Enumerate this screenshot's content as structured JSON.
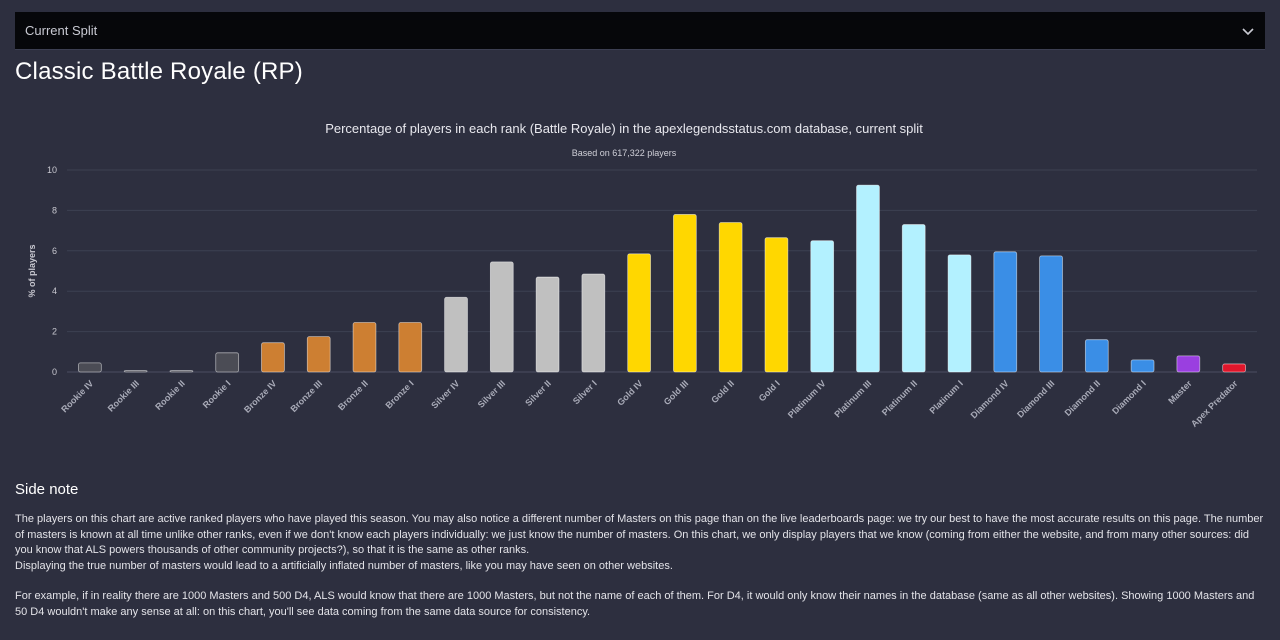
{
  "dropdown": {
    "selected": "Current Split"
  },
  "page_title": "Classic Battle Royale (RP)",
  "side_note": {
    "title": "Side note",
    "paragraph1": "The players on this chart are active ranked players who have played this season. You may also notice a different number of Masters on this page than on the live leaderboards page: we try our best to have the most accurate results on this page. The number of masters is known at all time unlike other ranks, even if we don't know each players individually: we just know the number of masters. On this chart, we only display players that we know (coming from either the website, and from many other sources: did you know that ALS powers thousands of other community projects?), so that it is the same as other ranks.",
    "paragraph2": "Displaying the true number of masters would lead to a artificially inflated number of masters, like you may have seen on other websites.",
    "paragraph3": "For example, if in reality there are 1000 Masters and 500 D4, ALS would know that there are 1000 Masters, but not the name of each of them. For D4, it would only know their names in the database (same as all other websites). Showing 1000 Masters and 50 D4 wouldn't make any sense at all: on this chart, you'll see data coming from the same data source for consistency."
  },
  "chart_data": {
    "type": "bar",
    "title": "Percentage of players in each rank (Battle Royale) in the apexlegendsstatus.com database, current split",
    "subtitle": "Based on 617,322 players",
    "ylabel": "% of players",
    "xlabel": "",
    "ylim": [
      0,
      10
    ],
    "yticks": [
      0,
      2,
      4,
      6,
      8,
      10
    ],
    "grid": true,
    "categories": [
      "Rookie IV",
      "Rookie III",
      "Rookie II",
      "Rookie I",
      "Bronze IV",
      "Bronze III",
      "Bronze II",
      "Bronze I",
      "Silver IV",
      "Silver III",
      "Silver II",
      "Silver I",
      "Gold IV",
      "Gold III",
      "Gold II",
      "Gold I",
      "Platinum IV",
      "Platinum III",
      "Platinum II",
      "Platinum I",
      "Diamond IV",
      "Diamond III",
      "Diamond II",
      "Diamond I",
      "Master",
      "Apex Predator"
    ],
    "values": [
      0.45,
      0.07,
      0.07,
      0.95,
      1.45,
      1.75,
      2.45,
      2.45,
      3.7,
      5.45,
      4.7,
      4.85,
      5.85,
      7.8,
      7.4,
      6.65,
      6.5,
      9.25,
      7.3,
      5.8,
      5.95,
      5.75,
      1.6,
      0.6,
      0.8,
      0.4
    ],
    "colors": [
      "#4b4c55",
      "#4b4c55",
      "#4b4c55",
      "#4b4c55",
      "#cd7f32",
      "#cd7f32",
      "#cd7f32",
      "#cd7f32",
      "#c0c0c0",
      "#c0c0c0",
      "#c0c0c0",
      "#c0c0c0",
      "#ffd700",
      "#ffd700",
      "#ffd700",
      "#ffd700",
      "#b3f1ff",
      "#b3f1ff",
      "#b3f1ff",
      "#b3f1ff",
      "#3a8ee6",
      "#3a8ee6",
      "#3a8ee6",
      "#3a8ee6",
      "#9a3fe0",
      "#e0162b"
    ]
  }
}
